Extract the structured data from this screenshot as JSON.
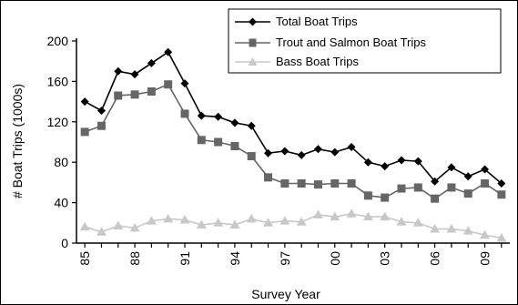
{
  "chart_data": {
    "type": "line",
    "title": "",
    "xlabel": "Survey Year",
    "ylabel": "# Boat Trips (1000s)",
    "ylim": [
      0,
      200
    ],
    "y_ticks": [
      0,
      40,
      80,
      120,
      160,
      200
    ],
    "x_ticks": [
      "85",
      "88",
      "91",
      "94",
      "97",
      "00",
      "03",
      "06",
      "09"
    ],
    "x_tick_years": [
      1985,
      1988,
      1991,
      1994,
      1997,
      2000,
      2003,
      2006,
      2009
    ],
    "x": [
      1985,
      1986,
      1987,
      1988,
      1989,
      1990,
      1991,
      1992,
      1993,
      1994,
      1995,
      1996,
      1997,
      1998,
      1999,
      2000,
      2001,
      2002,
      2003,
      2004,
      2005,
      2006,
      2007,
      2008,
      2009,
      2010
    ],
    "grid": false,
    "legend_position": "top-right",
    "series": [
      {
        "name": "Total Boat Trips",
        "color": "#000000",
        "marker": "diamond",
        "values": [
          140,
          131,
          170,
          167,
          178,
          189,
          158,
          126,
          125,
          119,
          116,
          89,
          91,
          87,
          93,
          90,
          95,
          80,
          76,
          82,
          81,
          61,
          75,
          66,
          73,
          59
        ]
      },
      {
        "name": "Trout and Salmon Boat Trips",
        "color": "#666666",
        "marker": "square",
        "values": [
          110,
          116,
          146,
          147,
          150,
          157,
          128,
          102,
          100,
          96,
          86,
          65,
          59,
          59,
          58,
          59,
          59,
          47,
          45,
          54,
          55,
          44,
          55,
          49,
          59,
          48
        ]
      },
      {
        "name": "Bass Boat Trips",
        "color": "#c8c8c8",
        "marker": "triangle",
        "values": [
          16,
          11,
          17,
          15,
          22,
          24,
          23,
          18,
          20,
          18,
          24,
          20,
          22,
          21,
          28,
          26,
          29,
          26,
          26,
          21,
          20,
          14,
          14,
          12,
          8,
          5
        ]
      }
    ]
  }
}
